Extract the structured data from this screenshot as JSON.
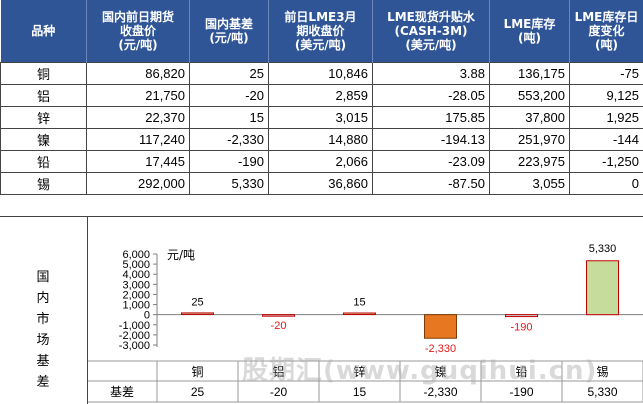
{
  "table": {
    "headers": [
      "品种",
      "国内前日期货\n收盘价\n(元/吨)",
      "国内基差\n(元/吨)",
      "前日LME3月\n期收盘价\n(美元/吨)",
      "LME现货升贴水\n(CASH-3M)\n(美元/吨)",
      "LME库存\n(吨)",
      "LME库存日\n度变化\n(吨)"
    ],
    "rows": [
      {
        "name": "铜",
        "cells": [
          {
            "v": "86,820",
            "neg": false
          },
          {
            "v": "25",
            "neg": false
          },
          {
            "v": "10,846",
            "neg": false
          },
          {
            "v": "3.88",
            "neg": false
          },
          {
            "v": "136,175",
            "neg": false
          },
          {
            "v": "-75",
            "neg": true
          }
        ]
      },
      {
        "name": "铝",
        "cells": [
          {
            "v": "21,750",
            "neg": false
          },
          {
            "v": "-20",
            "neg": true
          },
          {
            "v": "2,859",
            "neg": false
          },
          {
            "v": "-28.05",
            "neg": true
          },
          {
            "v": "553,200",
            "neg": false
          },
          {
            "v": "9,125",
            "neg": false
          }
        ]
      },
      {
        "name": "锌",
        "cells": [
          {
            "v": "22,370",
            "neg": false
          },
          {
            "v": "15",
            "neg": false
          },
          {
            "v": "3,015",
            "neg": false
          },
          {
            "v": "175.85",
            "neg": false
          },
          {
            "v": "37,800",
            "neg": false
          },
          {
            "v": "1,925",
            "neg": false
          }
        ]
      },
      {
        "name": "镍",
        "cells": [
          {
            "v": "117,240",
            "neg": false
          },
          {
            "v": "-2,330",
            "neg": true
          },
          {
            "v": "14,880",
            "neg": false
          },
          {
            "v": "-194.13",
            "neg": true
          },
          {
            "v": "251,970",
            "neg": false
          },
          {
            "v": "-144",
            "neg": true
          }
        ]
      },
      {
        "name": "铅",
        "cells": [
          {
            "v": "17,445",
            "neg": false
          },
          {
            "v": "-190",
            "neg": true
          },
          {
            "v": "2,066",
            "neg": false
          },
          {
            "v": "-23.09",
            "neg": true
          },
          {
            "v": "223,975",
            "neg": false
          },
          {
            "v": "-1,250",
            "neg": true
          }
        ]
      },
      {
        "name": "锡",
        "cells": [
          {
            "v": "292,000",
            "neg": false
          },
          {
            "v": "5,330",
            "neg": false
          },
          {
            "v": "36,860",
            "neg": false
          },
          {
            "v": "-87.50",
            "neg": true
          },
          {
            "v": "3,055",
            "neg": false
          },
          {
            "v": "0",
            "neg": false
          }
        ]
      }
    ]
  },
  "lower": {
    "side_label": "国内市场基差",
    "data_table_label": "基差",
    "watermark": "股期汇(www.guqihui.cn)"
  },
  "chart_data": {
    "type": "bar",
    "title": "",
    "ylabel": "元/吨",
    "xlabel": "",
    "categories": [
      "铜",
      "铝",
      "锌",
      "镍",
      "铅",
      "锡"
    ],
    "series": [
      {
        "values": [
          25,
          -20,
          15,
          -2330,
          -190,
          5330
        ]
      }
    ],
    "value_labels": [
      "25",
      "-20",
      "15",
      "-2,330",
      "-190",
      "5,330"
    ],
    "data_table": [
      "25",
      "-20",
      "15",
      "-2,330",
      "-190",
      "5,330"
    ],
    "yticks": [
      "6,000",
      "5,000",
      "4,000",
      "3,000",
      "2,000",
      "1,000",
      "0",
      "-1,000",
      "-2,000",
      "-3,000"
    ],
    "ylim": [
      -3000,
      6000
    ],
    "colors": {
      "positive": "#c6dc9c",
      "negative": "#e87722",
      "positive_stroke": "#c00000",
      "negative_stroke": "#7f3a00",
      "special": "#d8d8d8"
    },
    "legend": "none",
    "grid": false
  },
  "colors": {
    "header_bg": "#2f5597",
    "header_text": "#ffffff",
    "negative_text": "#e41a1c"
  }
}
